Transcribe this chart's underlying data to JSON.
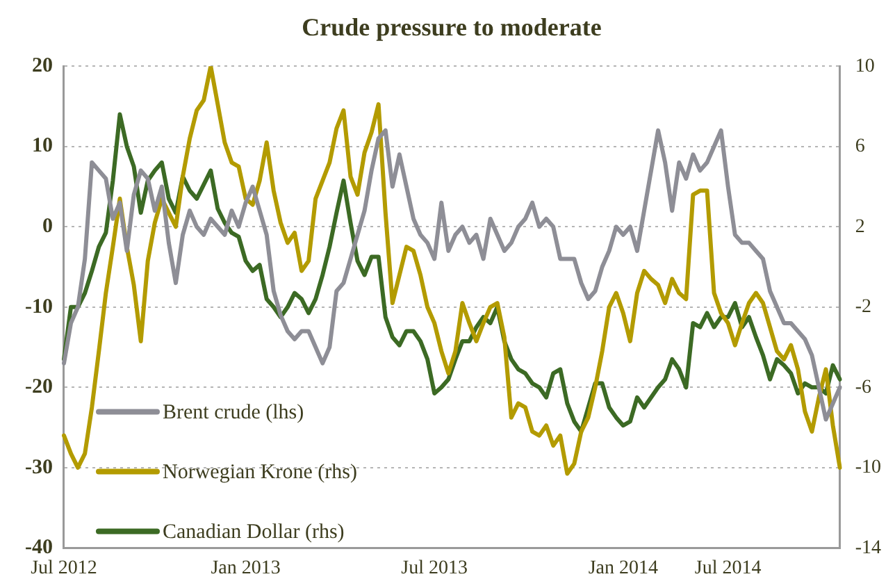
{
  "chart_data": {
    "type": "line",
    "title": "Crude pressure to moderate",
    "categories": [
      "Jul 2012",
      null,
      null,
      null,
      null,
      null,
      null,
      null,
      null,
      null,
      null,
      null,
      null,
      null,
      null,
      null,
      null,
      null,
      null,
      null,
      null,
      null,
      null,
      null,
      null,
      null,
      "Jan 2013",
      null,
      null,
      null,
      null,
      null,
      null,
      null,
      null,
      null,
      null,
      null,
      null,
      null,
      null,
      null,
      null,
      null,
      null,
      null,
      null,
      null,
      null,
      null,
      null,
      null,
      null,
      "Jul 2013",
      null,
      null,
      null,
      null,
      null,
      null,
      null,
      null,
      null,
      null,
      null,
      null,
      null,
      null,
      null,
      null,
      null,
      null,
      null,
      null,
      null,
      null,
      null,
      null,
      null,
      null,
      "Jan 2014",
      null,
      null,
      null,
      null,
      null,
      null,
      null,
      null,
      null,
      null,
      null,
      null,
      null,
      null,
      "Jul 2014",
      null,
      null,
      null,
      null,
      null,
      null,
      null,
      null,
      null,
      null,
      null,
      null,
      null,
      null,
      null,
      null
    ],
    "series": [
      {
        "name": "Brent crude (lhs)",
        "color": "#8e8e96",
        "values": [
          -17,
          -12,
          -10,
          -4,
          8,
          7,
          6,
          1,
          3,
          -3,
          4,
          7,
          6,
          2,
          5,
          -2,
          -7,
          -1,
          2,
          0,
          -1,
          1,
          0,
          -1,
          2,
          0,
          3,
          5,
          2,
          -1,
          -8,
          -11,
          -13,
          -14,
          -13,
          -13,
          -15,
          -17,
          -15,
          -8,
          -7,
          -4,
          -1,
          2,
          7,
          11,
          12,
          5,
          9,
          5,
          1,
          -1,
          -2,
          -4,
          3,
          -3,
          -1,
          0,
          -2,
          -1,
          -4,
          1,
          -1,
          -3,
          -2,
          0,
          1,
          3,
          0,
          1,
          0,
          -4,
          -4,
          -4,
          -7,
          -9,
          -8,
          -5,
          -3,
          0,
          -1,
          0,
          -3,
          2,
          7,
          12,
          8,
          2,
          8,
          6,
          9,
          7,
          8,
          10,
          12,
          5,
          -1,
          -2,
          -2,
          -3,
          -4,
          -8,
          -10,
          -12,
          -12,
          -13,
          -14,
          -16,
          -20,
          -24,
          -22,
          -20
        ]
      },
      {
        "name": "Norwegian Krone (rhs)",
        "color": "#b39b00",
        "axis": "y2",
        "values": [
          -8.4,
          -9.3,
          -10,
          -9.3,
          -7,
          -4.2,
          -1.3,
          1,
          3.4,
          1,
          -0.9,
          -3.7,
          0.3,
          2.2,
          3.4,
          2.7,
          2,
          4.5,
          6.4,
          7.8,
          8.3,
          10,
          8.1,
          6.2,
          5.2,
          5,
          3.4,
          3.1,
          4.3,
          6.2,
          3.8,
          2.2,
          1.2,
          1.7,
          -0.2,
          0.3,
          3.4,
          4.3,
          5.2,
          6.9,
          7.8,
          4.5,
          3.6,
          5.7,
          6.7,
          8.1,
          2.7,
          -1.8,
          -0.4,
          1,
          0.8,
          -0.4,
          -2,
          -2.8,
          -4.2,
          -5.3,
          -4.2,
          -1.8,
          -2.8,
          -3.7,
          -2.8,
          -2,
          -1.8,
          -3.5,
          -7.5,
          -6.8,
          -7,
          -8.2,
          -8.4,
          -7.9,
          -8.9,
          -8.4,
          -10.3,
          -9.8,
          -8.2,
          -7.5,
          -6,
          -4.2,
          -2,
          -1.3,
          -2.3,
          -3.7,
          -1.3,
          -0.2,
          -0.6,
          -0.9,
          -1.8,
          -0.6,
          -1.3,
          -1.6,
          3.6,
          3.8,
          3.8,
          -1.3,
          -2.3,
          -2.8,
          -3.9,
          -2.8,
          -1.8,
          -1.3,
          -1.8,
          -3,
          -4.2,
          -4.6,
          -3.9,
          -5.1,
          -7.2,
          -8.2,
          -6.5,
          -5.1,
          -7.9,
          -10
        ]
      },
      {
        "name": "Canadian Dollar (rhs)",
        "color": "#3c6a24",
        "axis": "y2",
        "values": [
          -4.6,
          -2,
          -2,
          -1.3,
          -0.2,
          1,
          1.7,
          4.3,
          7.6,
          6,
          5,
          2.7,
          4.3,
          4.8,
          5.2,
          3.4,
          2.7,
          4.5,
          3.8,
          3.4,
          4.1,
          4.8,
          2.9,
          2.2,
          1.7,
          1.5,
          0.3,
          -0.2,
          0.1,
          -1.6,
          -2,
          -2.5,
          -2,
          -1.3,
          -1.6,
          -2.3,
          -1.6,
          -0.4,
          1,
          2.7,
          4.3,
          2.2,
          0.3,
          -0.4,
          0.5,
          0.5,
          -2.5,
          -3.5,
          -3.9,
          -3.2,
          -3.2,
          -3.7,
          -4.6,
          -6.3,
          -6,
          -5.6,
          -4.6,
          -3.7,
          -3.7,
          -3,
          -2.5,
          -2.8,
          -2,
          -3.7,
          -4.6,
          -5.1,
          -5.3,
          -5.8,
          -6,
          -6.5,
          -5.3,
          -5.1,
          -6.8,
          -7.7,
          -8.2,
          -7,
          -5.8,
          -5.8,
          -7,
          -7.5,
          -7.9,
          -7.7,
          -6.5,
          -7,
          -6.5,
          -6,
          -5.6,
          -4.6,
          -5.1,
          -6,
          -2.8,
          -3,
          -2.3,
          -3,
          -2.5,
          -2.5,
          -1.8,
          -3,
          -2.5,
          -3.5,
          -4.4,
          -5.6,
          -4.6,
          -4.9,
          -5.3,
          -6.3,
          -5.8,
          -6,
          -6,
          -6.3,
          -4.9,
          -5.6
        ]
      }
    ],
    "ylim": [
      -40,
      20
    ],
    "yticks": [
      -40,
      -30,
      -20,
      -10,
      0,
      10,
      20
    ],
    "y2lim": [
      -14,
      10
    ],
    "y2ticks": [
      -14,
      -10,
      -6,
      -2,
      2,
      6,
      10
    ],
    "grid": "y",
    "legend": "bottom left",
    "marker": "none",
    "line_style": "solid"
  }
}
